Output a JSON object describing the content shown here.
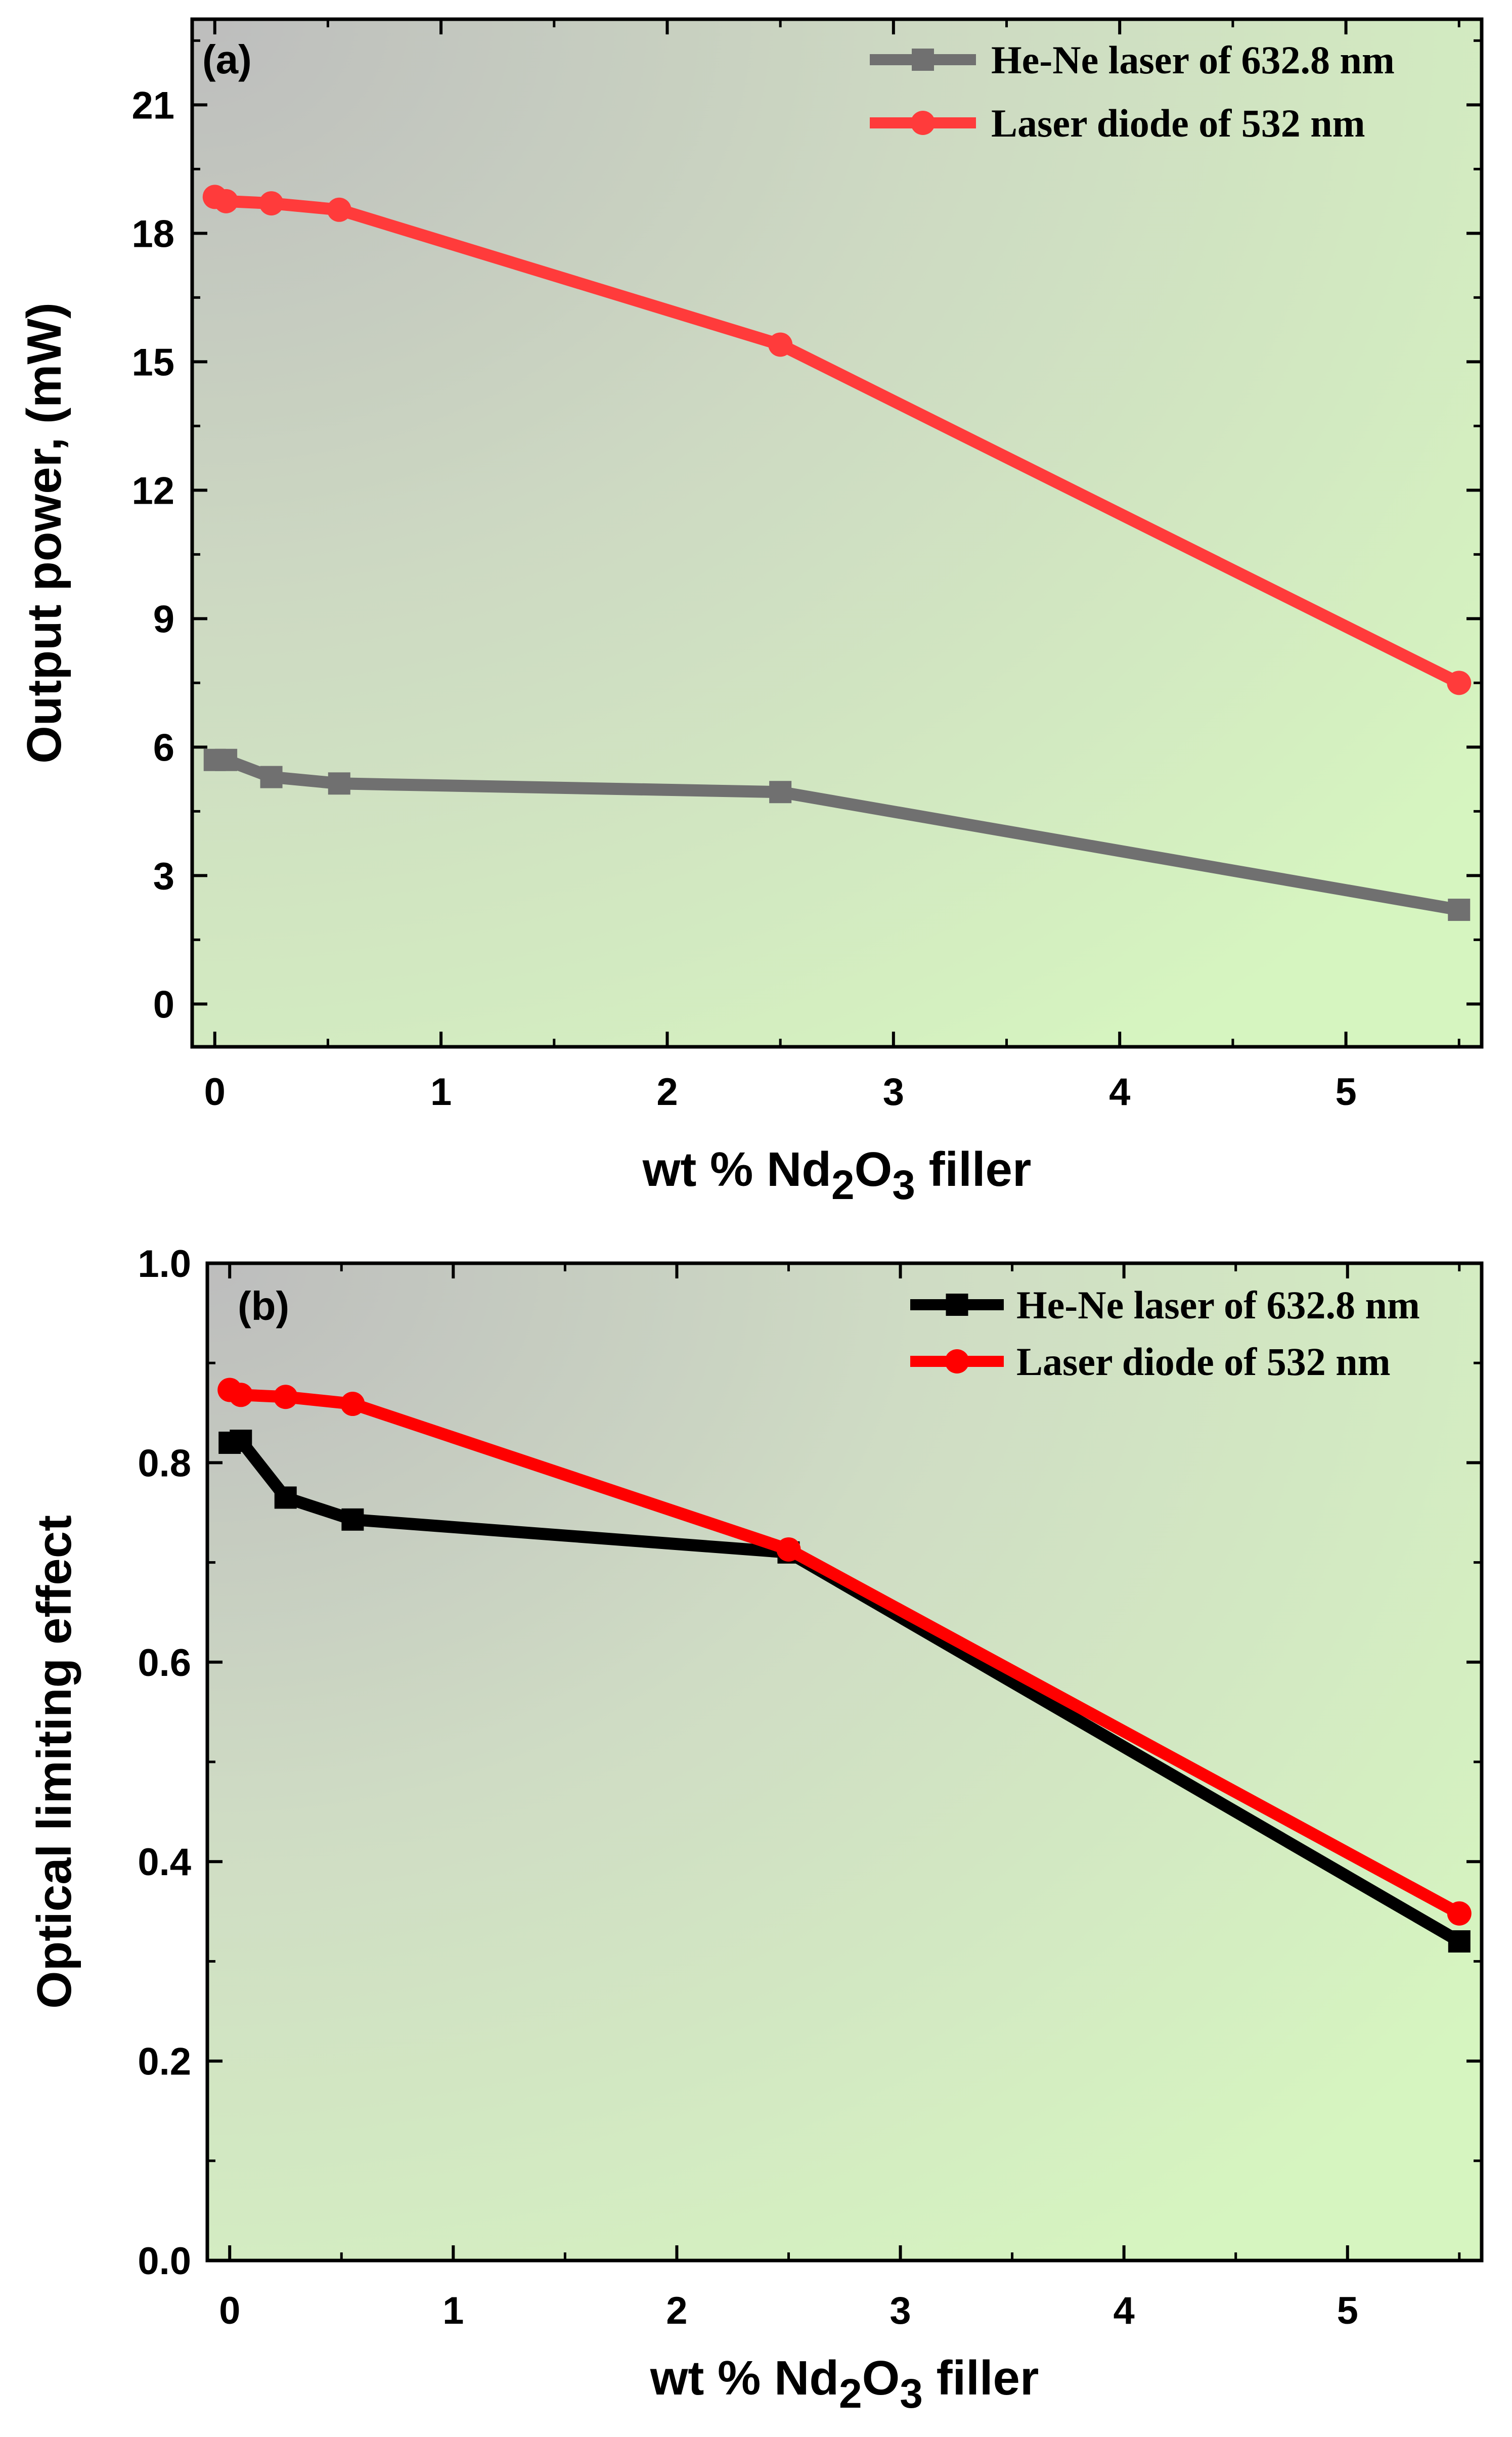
{
  "chart_data": [
    {
      "type": "line",
      "panel_label": "(a)",
      "xlabel": {
        "prefix": "wt % Nd",
        "sub1": "2",
        "mid": "O",
        "sub2": "3",
        "suffix": " filler"
      },
      "ylabel": "Output power, (mW)",
      "xlim": [
        -0.1,
        5.6
      ],
      "ylim": [
        -1,
        23
      ],
      "xticks": [
        0,
        1,
        2,
        3,
        4,
        5
      ],
      "yticks": [
        0,
        3,
        6,
        9,
        12,
        15,
        18,
        21
      ],
      "legend_position": "top-right",
      "series": [
        {
          "name": "He-Ne laser of 632.8 nm",
          "color": "#707070",
          "marker": "square",
          "x": [
            0,
            0.05,
            0.25,
            0.55,
            2.5,
            5.5
          ],
          "y": [
            5.7,
            5.7,
            5.3,
            5.15,
            4.95,
            2.2
          ]
        },
        {
          "name": "Laser diode of 532 nm",
          "color": "#ff3b3b",
          "marker": "circle",
          "x": [
            0,
            0.05,
            0.25,
            0.55,
            2.5,
            5.5
          ],
          "y": [
            18.85,
            18.75,
            18.7,
            18.55,
            15.4,
            7.5
          ]
        }
      ]
    },
    {
      "type": "line",
      "panel_label": "(b)",
      "xlabel": {
        "prefix": "wt % Nd",
        "sub1": "2",
        "mid": "O",
        "sub2": "3",
        "suffix": " filler"
      },
      "ylabel": "Optical limiting effect",
      "xlim": [
        -0.1,
        5.6
      ],
      "ylim": [
        0.0,
        1.0
      ],
      "xticks": [
        0,
        1,
        2,
        3,
        4,
        5
      ],
      "yticks": [
        0.0,
        0.2,
        0.4,
        0.6,
        0.8,
        1.0
      ],
      "ytick_labels": [
        "0.0",
        "0.2",
        "0.4",
        "0.6",
        "0.8",
        "1.0"
      ],
      "legend_position": "top-right",
      "series": [
        {
          "name": "He-Ne laser of 632.8 nm",
          "color": "#000000",
          "marker": "square",
          "x": [
            0,
            0.05,
            0.25,
            0.55,
            2.5,
            5.5
          ],
          "y": [
            0.82,
            0.822,
            0.765,
            0.743,
            0.71,
            0.32
          ]
        },
        {
          "name": "Laser diode of 532 nm",
          "color": "#ff0000",
          "marker": "circle",
          "x": [
            0,
            0.05,
            0.25,
            0.55,
            2.5,
            5.5
          ],
          "y": [
            0.873,
            0.868,
            0.866,
            0.859,
            0.713,
            0.348
          ]
        }
      ]
    }
  ]
}
